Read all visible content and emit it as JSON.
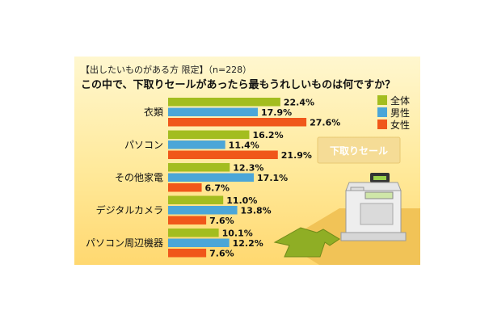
{
  "header": {
    "subtitle": "【出したいものがある方 限定】",
    "n_note": "（n=228）",
    "question": "この中で、下取りセールがあったら最もうれしいものは何ですか？"
  },
  "illustration": {
    "sign_text": "下取りセール"
  },
  "colors": {
    "全体": "#a3bd1f",
    "男性": "#4ba6d8",
    "女性": "#f0571a"
  },
  "chart_data": {
    "type": "bar",
    "orientation": "horizontal",
    "categories": [
      "衣類",
      "パソコン",
      "その他家電",
      "デジタルカメラ",
      "パソコン周辺機器"
    ],
    "series": [
      {
        "name": "全体",
        "values": [
          22.4,
          16.2,
          12.3,
          11.0,
          10.1
        ],
        "labels": [
          "22.4%",
          "16.2%",
          "12.3%",
          "11.0%",
          "10.1%"
        ]
      },
      {
        "name": "男性",
        "values": [
          17.9,
          11.4,
          17.1,
          13.8,
          12.2
        ],
        "labels": [
          "17.9%",
          "11.4%",
          "17.1%",
          "13.8%",
          "12.2%"
        ]
      },
      {
        "name": "女性",
        "values": [
          27.6,
          21.9,
          6.7,
          7.6,
          7.6
        ],
        "labels": [
          "27.6%",
          "21.9%",
          "6.7%",
          "7.6%",
          "7.6%"
        ]
      }
    ],
    "legend": {
      "position": "top-right",
      "entries": [
        "全体",
        "男性",
        "女性"
      ]
    },
    "title": "この中で、下取りセールがあったら最もうれしいものは何ですか？",
    "xlabel": "",
    "ylabel": "",
    "grid": false
  }
}
